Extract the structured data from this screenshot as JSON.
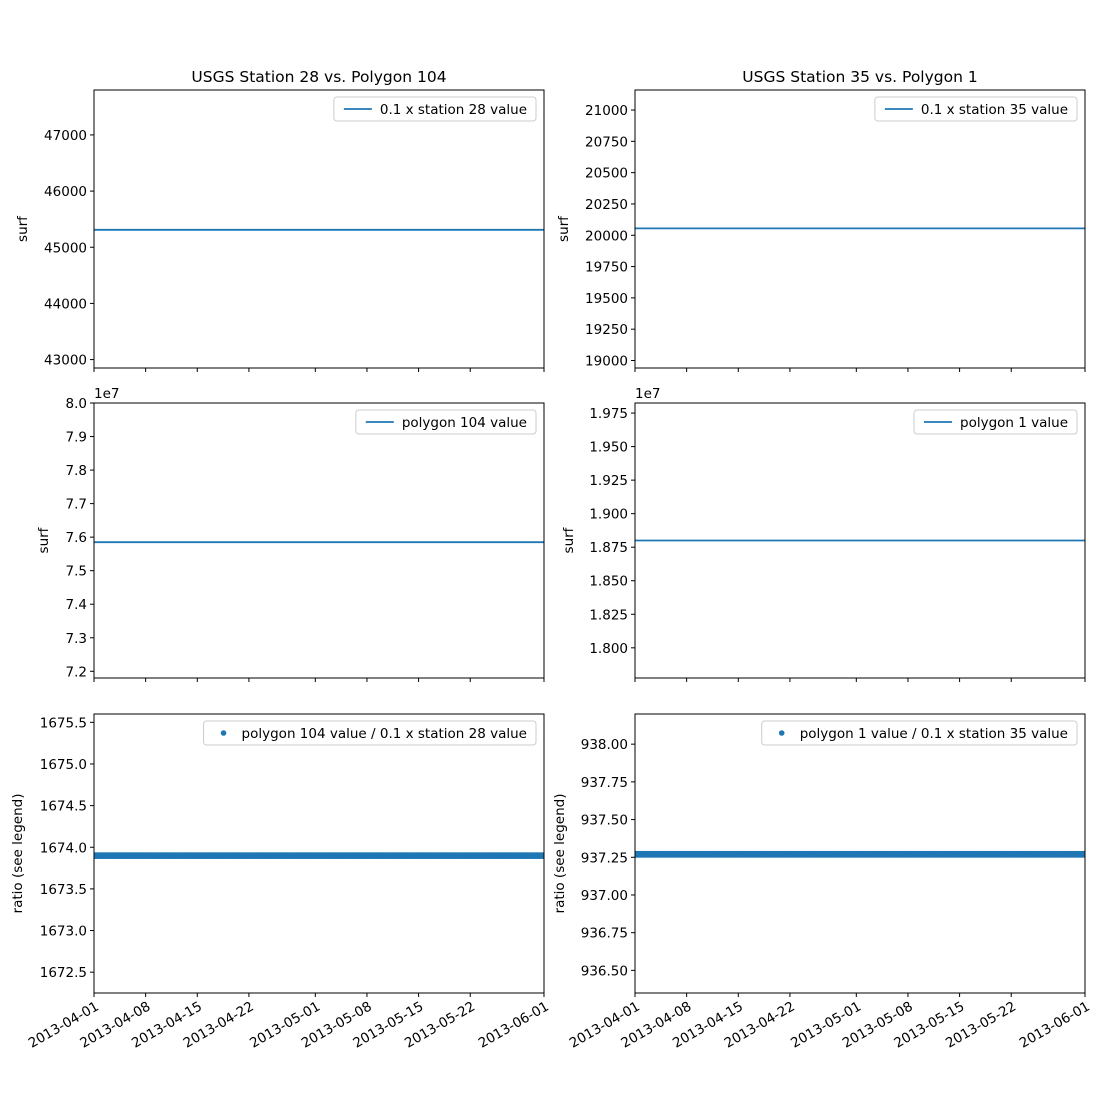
{
  "figure": {
    "colors": {
      "series": "#1f77b4",
      "axes": "#000000",
      "legend_border": "#cccccc"
    }
  },
  "chart_data": [
    {
      "type": "line",
      "title": "USGS Station 28 vs. Polygon 104",
      "xlabel": "",
      "ylabel": "surf",
      "xlim": [
        "2013-04-01",
        "2013-06-01"
      ],
      "ylim": [
        42850,
        47800
      ],
      "yticks": [
        43000,
        44000,
        45000,
        46000,
        47000
      ],
      "ytick_labels": [
        "43000",
        "44000",
        "45000",
        "46000",
        "47000"
      ],
      "multiplier": "",
      "legend": "top-right",
      "series": [
        {
          "name": "0.1 x station 28 value",
          "marker": "line",
          "x": [
            "2013-04-01",
            "2013-06-01"
          ],
          "y": [
            45310,
            45310
          ]
        }
      ]
    },
    {
      "type": "line",
      "title": "USGS Station 35 vs. Polygon 1",
      "xlabel": "",
      "ylabel": "surf",
      "xlim": [
        "2013-04-01",
        "2013-06-01"
      ],
      "ylim": [
        18940,
        21160
      ],
      "yticks": [
        19000,
        19250,
        19500,
        19750,
        20000,
        20250,
        20500,
        20750,
        21000
      ],
      "ytick_labels": [
        "19000",
        "19250",
        "19500",
        "19750",
        "20000",
        "20250",
        "20500",
        "20750",
        "21000"
      ],
      "multiplier": "",
      "legend": "top-right",
      "series": [
        {
          "name": "0.1 x station 35 value",
          "marker": "line",
          "x": [
            "2013-04-01",
            "2013-06-01"
          ],
          "y": [
            20055,
            20055
          ]
        }
      ]
    },
    {
      "type": "line",
      "title": "",
      "xlabel": "",
      "ylabel": "surf",
      "xlim": [
        "2013-04-01",
        "2013-06-01"
      ],
      "ylim": [
        7.18,
        8.0
      ],
      "yticks": [
        7.2,
        7.3,
        7.4,
        7.5,
        7.6,
        7.7,
        7.8,
        7.9,
        8.0
      ],
      "ytick_labels": [
        "7.2",
        "7.3",
        "7.4",
        "7.5",
        "7.6",
        "7.7",
        "7.8",
        "7.9",
        "8.0"
      ],
      "multiplier": "1e7",
      "legend": "top-right",
      "series": [
        {
          "name": "polygon 104 value",
          "marker": "line",
          "x": [
            "2013-04-01",
            "2013-06-01"
          ],
          "y": [
            7.585,
            7.585
          ]
        }
      ]
    },
    {
      "type": "line",
      "title": "",
      "xlabel": "",
      "ylabel": "surf",
      "xlim": [
        "2013-04-01",
        "2013-06-01"
      ],
      "ylim": [
        1.7775,
        1.9825
      ],
      "yticks": [
        1.8,
        1.825,
        1.85,
        1.875,
        1.9,
        1.925,
        1.95,
        1.975
      ],
      "ytick_labels": [
        "1.800",
        "1.825",
        "1.850",
        "1.875",
        "1.900",
        "1.925",
        "1.950",
        "1.975"
      ],
      "multiplier": "1e7",
      "legend": "top-right",
      "series": [
        {
          "name": "polygon 1 value",
          "marker": "line",
          "x": [
            "2013-04-01",
            "2013-06-01"
          ],
          "y": [
            1.88,
            1.88
          ]
        }
      ]
    },
    {
      "type": "scatter",
      "title": "",
      "xlabel": "",
      "ylabel": "ratio (see legend)",
      "xlim": [
        "2013-04-01",
        "2013-06-01"
      ],
      "ylim": [
        1672.25,
        1675.6
      ],
      "yticks": [
        1672.5,
        1673.0,
        1673.5,
        1674.0,
        1674.5,
        1675.0,
        1675.5
      ],
      "ytick_labels": [
        "1672.5",
        "1673.0",
        "1673.5",
        "1674.0",
        "1674.5",
        "1675.0",
        "1675.5"
      ],
      "multiplier": "",
      "legend": "top-right",
      "series": [
        {
          "name": "polygon 104 value / 0.1 x station 28 value",
          "marker": "dots",
          "x": [
            "2013-04-01",
            "2013-06-01"
          ],
          "y": [
            1673.9,
            1673.9
          ]
        }
      ]
    },
    {
      "type": "scatter",
      "title": "",
      "xlabel": "",
      "ylabel": "ratio (see legend)",
      "xlim": [
        "2013-04-01",
        "2013-06-01"
      ],
      "ylim": [
        936.35,
        938.2
      ],
      "yticks": [
        936.5,
        936.75,
        937.0,
        937.25,
        937.5,
        937.75,
        938.0
      ],
      "ytick_labels": [
        "936.50",
        "936.75",
        "937.00",
        "937.25",
        "937.50",
        "937.75",
        "938.00"
      ],
      "multiplier": "",
      "legend": "top-right",
      "series": [
        {
          "name": "polygon 1 value / 0.1 x station 35 value",
          "marker": "dots",
          "x": [
            "2013-04-01",
            "2013-06-01"
          ],
          "y": [
            937.27,
            937.27
          ]
        }
      ]
    }
  ],
  "x_axis": {
    "ticks": [
      "2013-04-01",
      "2013-04-08",
      "2013-04-15",
      "2013-04-22",
      "2013-05-01",
      "2013-05-08",
      "2013-05-15",
      "2013-05-22",
      "2013-06-01"
    ],
    "tick_labels": [
      "2013-04-01",
      "2013-04-08",
      "2013-04-15",
      "2013-04-22",
      "2013-05-01",
      "2013-05-08",
      "2013-05-15",
      "2013-05-22",
      "2013-06-01"
    ]
  }
}
